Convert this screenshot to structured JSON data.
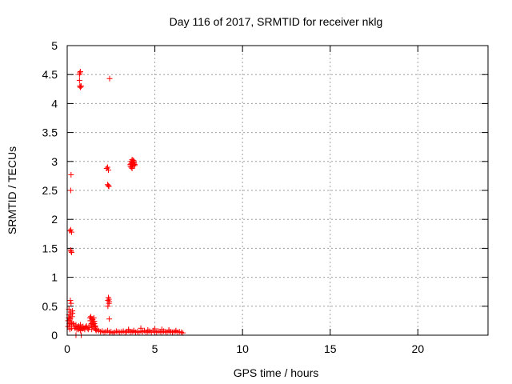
{
  "chart_data": {
    "type": "scatter",
    "title": "Day 116 of 2017, SRMTID for receiver nklg",
    "xlabel": "GPS time / hours",
    "ylabel": "SRMTID / TECUs",
    "xlim": [
      0,
      24
    ],
    "ylim": [
      0,
      5
    ],
    "xticks": [
      0,
      5,
      10,
      15,
      20
    ],
    "yticks": [
      0,
      0.5,
      1,
      1.5,
      2,
      2.5,
      3,
      3.5,
      4,
      4.5,
      5
    ],
    "xtick_labels": [
      "0",
      "5",
      "10",
      "15",
      "20"
    ],
    "ytick_labels": [
      "0",
      "0.5",
      "1",
      "1.5",
      "2",
      "2.5",
      "3",
      "3.5",
      "4",
      "4.5",
      "5"
    ],
    "grid": true,
    "marker": "+",
    "series": [
      {
        "name": "SRMTID",
        "color": "#ff0000",
        "x": [
          0.05,
          0.08,
          0.1,
          0.12,
          0.15,
          0.18,
          0.2,
          0.22,
          0.25,
          0.28,
          0.3,
          0.05,
          0.1,
          0.15,
          0.2,
          0.25,
          0.3,
          0.12,
          0.18,
          0.22,
          0.27,
          0.15,
          0.2,
          0.25,
          0.2,
          0.22,
          0.25,
          0.2,
          0.22,
          0.35,
          0.5,
          0.65,
          0.75,
          0.9,
          0.7,
          0.72,
          0.75,
          0.7,
          0.72,
          0.75,
          0.78,
          0.8,
          0.4,
          0.45,
          0.5,
          0.55,
          0.6,
          0.65,
          0.7,
          0.75,
          0.8,
          0.85,
          0.9,
          0.95,
          1.0,
          1.05,
          1.1,
          1.15,
          1.2,
          1.25,
          1.3,
          1.32,
          1.35,
          1.38,
          1.4,
          1.42,
          1.45,
          1.48,
          1.5,
          1.52,
          1.55,
          1.58,
          1.6,
          1.62,
          1.65,
          1.35,
          1.4,
          1.45,
          1.5,
          1.55,
          1.6,
          1.7,
          1.8,
          1.9,
          2.0,
          2.1,
          2.2,
          2.3,
          2.4,
          2.5,
          2.6,
          2.7,
          2.8,
          2.9,
          3.0,
          3.1,
          3.2,
          3.3,
          3.4,
          3.5,
          3.6,
          3.7,
          3.8,
          3.9,
          4.0,
          4.1,
          4.2,
          4.3,
          4.4,
          4.5,
          4.6,
          4.7,
          4.8,
          4.9,
          5.0,
          5.1,
          5.2,
          5.3,
          5.4,
          5.5,
          5.6,
          5.7,
          5.8,
          5.9,
          6.0,
          6.1,
          6.2,
          6.3,
          6.4,
          6.5,
          6.6,
          2.25,
          2.3,
          2.35,
          2.3,
          2.35,
          2.38,
          2.32,
          2.35,
          2.38,
          2.32,
          2.38,
          2.4,
          2.4,
          2.42,
          2.35,
          3.6,
          3.65,
          3.7,
          3.75,
          3.8,
          3.85,
          3.6,
          3.65,
          3.7,
          3.75,
          3.8,
          3.85,
          3.65,
          3.7,
          3.75,
          3.8,
          3.7,
          3.75,
          3.8,
          3.75,
          3.5,
          3.8,
          4.2,
          4.6,
          5.0,
          5.4,
          5.8,
          6.2,
          0.5,
          0.8
        ],
        "y": [
          0.25,
          0.3,
          0.35,
          0.2,
          0.15,
          0.28,
          0.4,
          0.22,
          0.18,
          0.32,
          0.38,
          0.15,
          0.45,
          0.1,
          0.35,
          0.12,
          0.42,
          0.3,
          0.6,
          0.55,
          0.22,
          1.8,
          1.82,
          1.78,
          1.47,
          1.45,
          1.43,
          2.5,
          2.77,
          0.2,
          0.15,
          0.1,
          0.18,
          0.12,
          4.5,
          4.53,
          4.55,
          4.4,
          4.3,
          4.28,
          4.3,
          4.3,
          0.15,
          0.12,
          0.18,
          0.1,
          0.14,
          0.16,
          0.12,
          0.08,
          0.13,
          0.11,
          0.15,
          0.12,
          0.1,
          0.14,
          0.16,
          0.12,
          0.1,
          0.13,
          0.3,
          0.25,
          0.32,
          0.2,
          0.28,
          0.15,
          0.27,
          0.22,
          0.18,
          0.3,
          0.2,
          0.12,
          0.15,
          0.1,
          0.08,
          0.18,
          0.1,
          0.22,
          0.14,
          0.24,
          0.16,
          0.1,
          0.08,
          0.06,
          0.07,
          0.05,
          0.06,
          0.08,
          0.05,
          0.06,
          0.04,
          0.05,
          0.07,
          0.06,
          0.05,
          0.06,
          0.07,
          0.05,
          0.06,
          0.08,
          0.05,
          0.06,
          0.07,
          0.05,
          0.06,
          0.05,
          0.07,
          0.06,
          0.08,
          0.05,
          0.06,
          0.07,
          0.05,
          0.08,
          0.06,
          0.05,
          0.07,
          0.06,
          0.05,
          0.07,
          0.06,
          0.05,
          0.07,
          0.06,
          0.05,
          0.06,
          0.07,
          0.05,
          0.06,
          0.05,
          0.04,
          2.88,
          2.9,
          2.85,
          2.6,
          2.58,
          2.57,
          0.6,
          0.65,
          0.62,
          0.5,
          0.55,
          0.58,
          0.28,
          4.43,
          2.58,
          2.95,
          3.0,
          2.98,
          3.02,
          2.97,
          2.93,
          2.92,
          2.96,
          2.99,
          2.94,
          3.01,
          2.95,
          2.9,
          2.88,
          2.93,
          2.97,
          3.03,
          2.92,
          2.98,
          2.95,
          0.1,
          0.08,
          0.12,
          0.09,
          0.11,
          0.1,
          0.09,
          0.08,
          0.0,
          0.0
        ]
      }
    ]
  }
}
